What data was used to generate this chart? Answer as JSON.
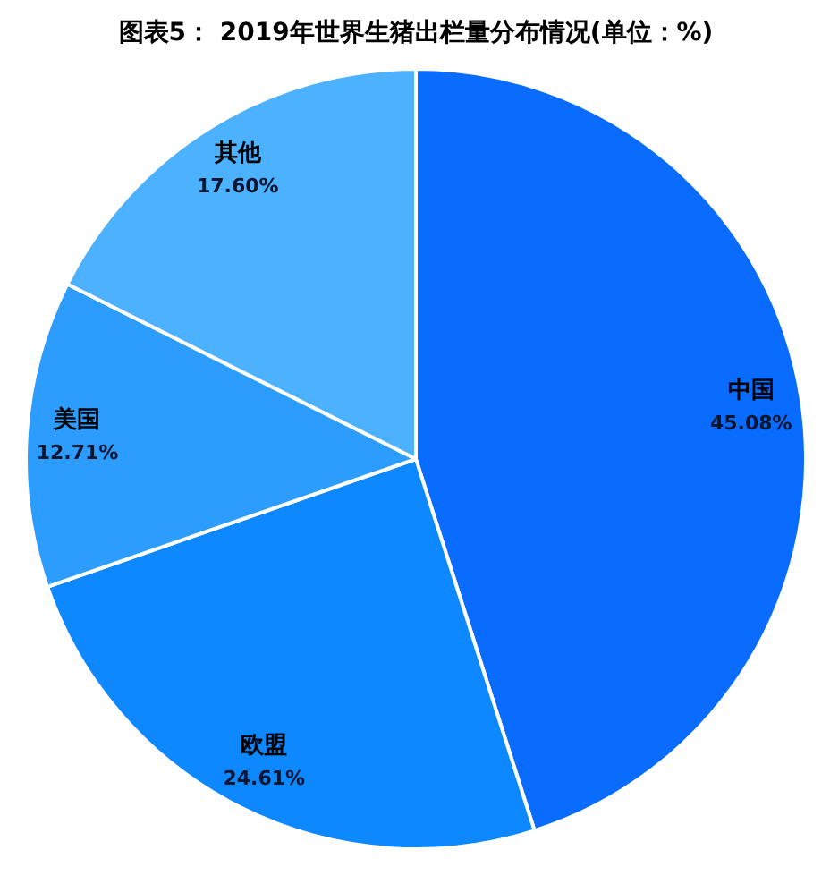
{
  "chart_data": {
    "type": "pie",
    "title": "图表5： 2019年世界生猪出栏量分布情况(单位：%)",
    "categories": [
      "中国",
      "欧盟",
      "美国",
      "其他"
    ],
    "values": [
      45.08,
      24.61,
      12.71,
      17.6
    ],
    "colors": [
      "#0a6cff",
      "#0d88ff",
      "#2d9cff",
      "#4cb2ff"
    ],
    "value_labels": [
      "45.08%",
      "24.61%",
      "12.71%",
      "17.60%"
    ]
  }
}
